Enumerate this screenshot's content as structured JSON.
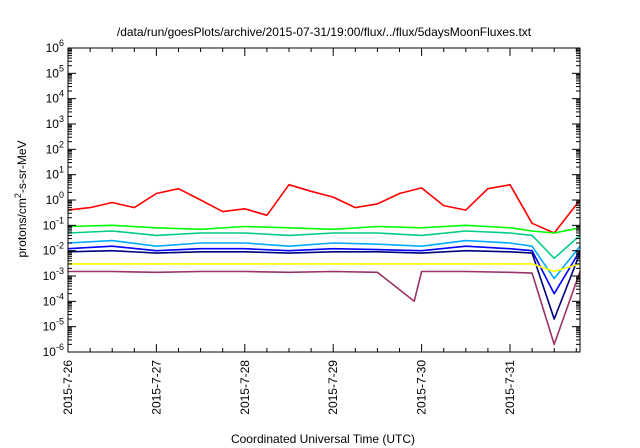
{
  "chart_data": {
    "type": "line",
    "title": "/data/run/goesPlots/archive/2015-07-31/19:00/flux/../flux/5daysMoonFluxes.txt",
    "xlabel": "Coordinated Universal Time (UTC)",
    "ylabel": "protons/cm2-s-sr-MeV",
    "ylabel_main": "protons/cm",
    "ylabel_sup": "2",
    "ylabel_rest": "-s-sr-MeV",
    "y_scale": "log",
    "ylim": [
      1e-06,
      1000000.0
    ],
    "xlim": [
      "2015-07-26",
      "2015-07-31T19:00"
    ],
    "grid": false,
    "legend": "none",
    "x_ticks": [
      "2015-7-26",
      "2015-7-27",
      "2015-7-28",
      "2015-7-29",
      "2015-7-30",
      "2015-7-31"
    ],
    "y_ticks": [
      {
        "base": "10",
        "exp": "-6",
        "value": 1e-06
      },
      {
        "base": "10",
        "exp": "-5",
        "value": 1e-05
      },
      {
        "base": "10",
        "exp": "-4",
        "value": 0.0001
      },
      {
        "base": "10",
        "exp": "-3",
        "value": 0.001
      },
      {
        "base": "10",
        "exp": "-2",
        "value": 0.01
      },
      {
        "base": "10",
        "exp": "-1",
        "value": 0.1
      },
      {
        "base": "10",
        "exp": "0",
        "value": 1
      },
      {
        "base": "10",
        "exp": "1",
        "value": 10
      },
      {
        "base": "10",
        "exp": "2",
        "value": 100
      },
      {
        "base": "10",
        "exp": "3",
        "value": 1000
      },
      {
        "base": "10",
        "exp": "4",
        "value": 10000
      },
      {
        "base": "10",
        "exp": "5",
        "value": 100000
      },
      {
        "base": "10",
        "exp": "6",
        "value": 1000000
      }
    ],
    "series": [
      {
        "color": "#ff0000",
        "x": [
          "2015-07-26T00:00",
          "2015-07-26T06:00",
          "2015-07-26T12:00",
          "2015-07-26T18:00",
          "2015-07-27T00:00",
          "2015-07-27T06:00",
          "2015-07-27T12:00",
          "2015-07-27T18:00",
          "2015-07-28T00:00",
          "2015-07-28T06:00",
          "2015-07-28T12:00",
          "2015-07-28T18:00",
          "2015-07-29T00:00",
          "2015-07-29T06:00",
          "2015-07-29T12:00",
          "2015-07-29T18:00",
          "2015-07-30T00:00",
          "2015-07-30T06:00",
          "2015-07-30T12:00",
          "2015-07-30T18:00",
          "2015-07-31T00:00",
          "2015-07-31T06:00",
          "2015-07-31T12:00",
          "2015-07-31T19:00"
        ],
        "values": [
          0.4,
          0.5,
          0.8,
          0.5,
          1.8,
          2.8,
          1.0,
          0.35,
          0.45,
          0.25,
          4.0,
          2.2,
          1.3,
          0.5,
          0.7,
          1.8,
          3.0,
          0.6,
          0.4,
          2.8,
          4.0,
          0.12,
          0.05,
          1.0
        ]
      },
      {
        "color": "#00ff00",
        "x": [
          "2015-07-26T00:00",
          "2015-07-26T12:00",
          "2015-07-27T00:00",
          "2015-07-27T12:00",
          "2015-07-28T00:00",
          "2015-07-28T12:00",
          "2015-07-29T00:00",
          "2015-07-29T12:00",
          "2015-07-30T00:00",
          "2015-07-30T12:00",
          "2015-07-31T00:00",
          "2015-07-31T06:00",
          "2015-07-31T12:00",
          "2015-07-31T19:00"
        ],
        "values": [
          0.09,
          0.1,
          0.08,
          0.07,
          0.09,
          0.08,
          0.07,
          0.09,
          0.08,
          0.1,
          0.08,
          0.06,
          0.05,
          0.08
        ]
      },
      {
        "color": "#00cc88",
        "x": [
          "2015-07-26T00:00",
          "2015-07-26T12:00",
          "2015-07-27T00:00",
          "2015-07-27T12:00",
          "2015-07-28T00:00",
          "2015-07-28T12:00",
          "2015-07-29T00:00",
          "2015-07-29T12:00",
          "2015-07-30T00:00",
          "2015-07-30T12:00",
          "2015-07-31T00:00",
          "2015-07-31T06:00",
          "2015-07-31T12:00",
          "2015-07-31T19:00"
        ],
        "values": [
          0.05,
          0.06,
          0.04,
          0.05,
          0.05,
          0.04,
          0.05,
          0.05,
          0.04,
          0.06,
          0.05,
          0.04,
          0.005,
          0.04
        ]
      },
      {
        "color": "#00aaff",
        "x": [
          "2015-07-26T00:00",
          "2015-07-26T12:00",
          "2015-07-27T00:00",
          "2015-07-27T12:00",
          "2015-07-28T00:00",
          "2015-07-28T12:00",
          "2015-07-29T00:00",
          "2015-07-29T12:00",
          "2015-07-30T00:00",
          "2015-07-30T12:00",
          "2015-07-31T00:00",
          "2015-07-31T06:00",
          "2015-07-31T12:00",
          "2015-07-31T19:00"
        ],
        "values": [
          0.02,
          0.025,
          0.015,
          0.02,
          0.02,
          0.015,
          0.02,
          0.018,
          0.015,
          0.025,
          0.02,
          0.015,
          0.0008,
          0.015
        ]
      },
      {
        "color": "#0000ff",
        "x": [
          "2015-07-26T00:00",
          "2015-07-26T12:00",
          "2015-07-27T00:00",
          "2015-07-27T12:00",
          "2015-07-28T00:00",
          "2015-07-28T12:00",
          "2015-07-29T00:00",
          "2015-07-29T12:00",
          "2015-07-30T00:00",
          "2015-07-30T12:00",
          "2015-07-31T00:00",
          "2015-07-31T06:00",
          "2015-07-31T12:00",
          "2015-07-31T19:00"
        ],
        "values": [
          0.012,
          0.015,
          0.01,
          0.012,
          0.012,
          0.01,
          0.012,
          0.011,
          0.01,
          0.015,
          0.012,
          0.01,
          0.0002,
          0.01
        ]
      },
      {
        "color": "#000080",
        "x": [
          "2015-07-26T00:00",
          "2015-07-26T12:00",
          "2015-07-27T00:00",
          "2015-07-27T12:00",
          "2015-07-28T00:00",
          "2015-07-28T12:00",
          "2015-07-29T00:00",
          "2015-07-29T12:00",
          "2015-07-30T00:00",
          "2015-07-30T12:00",
          "2015-07-31T00:00",
          "2015-07-31T06:00",
          "2015-07-31T12:00",
          "2015-07-31T19:00"
        ],
        "values": [
          0.009,
          0.01,
          0.008,
          0.009,
          0.009,
          0.008,
          0.009,
          0.009,
          0.008,
          0.01,
          0.009,
          0.008,
          2e-05,
          0.008
        ]
      },
      {
        "color": "#ffff00",
        "x": [
          "2015-07-26T00:00",
          "2015-07-26T12:00",
          "2015-07-27T00:00",
          "2015-07-27T12:00",
          "2015-07-28T00:00",
          "2015-07-28T12:00",
          "2015-07-29T00:00",
          "2015-07-29T12:00",
          "2015-07-30T00:00",
          "2015-07-30T12:00",
          "2015-07-31T00:00",
          "2015-07-31T06:00",
          "2015-07-31T12:00",
          "2015-07-31T19:00"
        ],
        "values": [
          0.003,
          0.003,
          0.003,
          0.003,
          0.003,
          0.003,
          0.003,
          0.003,
          0.003,
          0.003,
          0.003,
          0.003,
          0.0015,
          0.003
        ]
      },
      {
        "color": "#993366",
        "x": [
          "2015-07-26T00:00",
          "2015-07-26T12:00",
          "2015-07-27T00:00",
          "2015-07-27T12:00",
          "2015-07-28T00:00",
          "2015-07-28T12:00",
          "2015-07-29T00:00",
          "2015-07-29T12:00",
          "2015-07-29T22:00",
          "2015-07-30T00:00",
          "2015-07-30T12:00",
          "2015-07-31T00:00",
          "2015-07-31T06:00",
          "2015-07-31T12:00",
          "2015-07-31T19:00"
        ],
        "values": [
          0.0015,
          0.0015,
          0.0014,
          0.0015,
          0.0015,
          0.0014,
          0.0015,
          0.0014,
          0.0001,
          0.0015,
          0.0015,
          0.0014,
          0.0013,
          2e-06,
          0.0015
        ]
      }
    ]
  }
}
